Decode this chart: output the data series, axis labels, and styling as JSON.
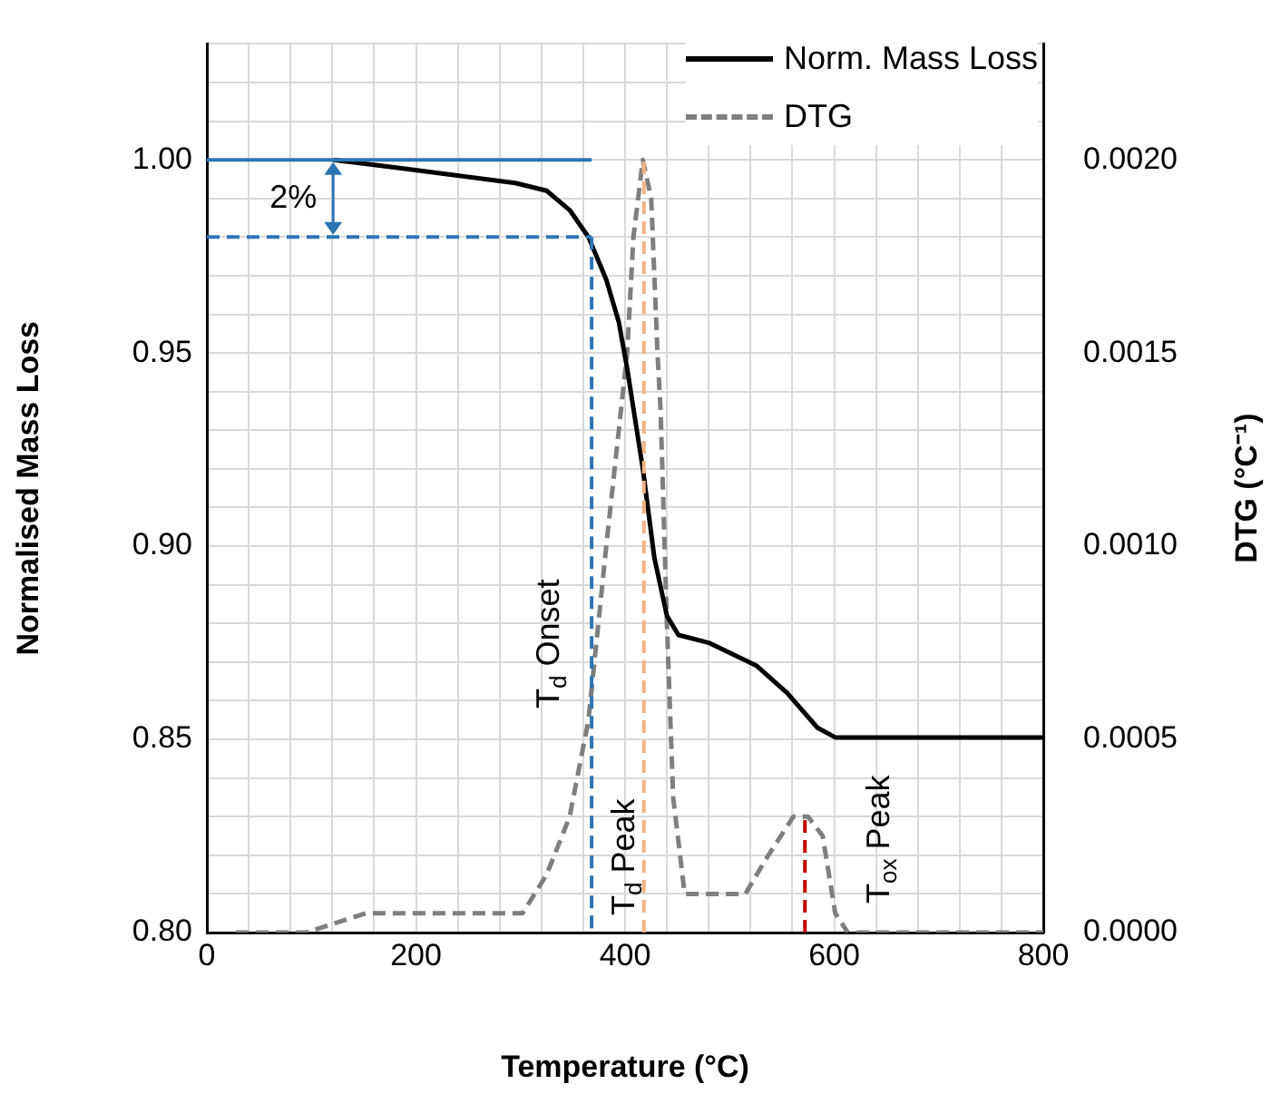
{
  "chart_data": {
    "type": "line",
    "xlabel": "Temperature (°C)",
    "ylabel": "Normalised Mass Loss",
    "y2label": "DTG (°C⁻¹)",
    "xlim": [
      0,
      800
    ],
    "xticks": [
      0,
      {
        "value": 40,
        "label": null
      },
      {
        "value": 80,
        "label": null
      },
      {
        "value": 120,
        "label": null
      },
      {
        "value": 160,
        "label": null
      },
      200,
      {
        "value": 240,
        "label": null
      },
      {
        "value": 280,
        "label": null
      },
      {
        "value": 320,
        "label": null
      },
      {
        "value": 360,
        "label": null
      },
      400,
      {
        "value": 440,
        "label": null
      },
      {
        "value": 480,
        "label": null
      },
      {
        "value": 520,
        "label": null
      },
      {
        "value": 560,
        "label": null
      },
      600,
      {
        "value": 640,
        "label": null
      },
      {
        "value": 680,
        "label": null
      },
      {
        "value": 720,
        "label": null
      },
      {
        "value": 760,
        "label": null
      },
      800
    ],
    "ylim": [
      0.8,
      1.03
    ],
    "yticks": [
      {
        "value": 0.8,
        "label": "0.80"
      },
      {
        "value": 0.81,
        "label": null
      },
      {
        "value": 0.82,
        "label": null
      },
      {
        "value": 0.83,
        "label": null
      },
      {
        "value": 0.84,
        "label": null
      },
      {
        "value": 0.85,
        "label": "0.85"
      },
      {
        "value": 0.86,
        "label": null
      },
      {
        "value": 0.87,
        "label": null
      },
      {
        "value": 0.88,
        "label": null
      },
      {
        "value": 0.89,
        "label": null
      },
      {
        "value": 0.9,
        "label": "0.90"
      },
      {
        "value": 0.91,
        "label": null
      },
      {
        "value": 0.92,
        "label": null
      },
      {
        "value": 0.93,
        "label": null
      },
      {
        "value": 0.94,
        "label": null
      },
      {
        "value": 0.95,
        "label": "0.95"
      },
      {
        "value": 0.96,
        "label": null
      },
      {
        "value": 0.97,
        "label": null
      },
      {
        "value": 0.98,
        "label": null
      },
      {
        "value": 0.99,
        "label": null
      },
      {
        "value": 1,
        "label": "1.00"
      },
      {
        "value": 1.01,
        "label": null
      },
      {
        "value": 1.02,
        "label": null
      },
      {
        "value": 1.03,
        "label": null
      }
    ],
    "y2lim": [
      0,
      0.0023
    ],
    "y2ticks": [
      {
        "value": 0,
        "label": "0.0000"
      },
      {
        "value": 0.0005,
        "label": "0.0005"
      },
      {
        "value": 0.001,
        "label": "0.0010"
      },
      {
        "value": 0.0015,
        "label": "0.0015"
      },
      {
        "value": 0.002,
        "label": "0.0020"
      }
    ],
    "grid": true,
    "legend": "top right",
    "marker": "none",
    "series": [
      {
        "name": "Norm. Mass Loss",
        "color": "#000000",
        "line_style": "solid",
        "x": [
          121,
          181,
          238,
          295,
          325,
          347,
          365,
          382,
          394,
          402,
          417,
          428,
          440,
          451,
          480,
          526,
          555,
          584,
          601,
          800
        ],
        "values": [
          1.0,
          0.998,
          0.996,
          0.994,
          0.992,
          0.987,
          0.98,
          0.969,
          0.958,
          0.946,
          0.92,
          0.897,
          0.882,
          0.877,
          0.875,
          0.869,
          0.862,
          0.853,
          0.8505,
          0.8505
        ]
      },
      {
        "name": "DTG",
        "color": "#7f7f7f",
        "axis": "y2",
        "line_style": "dashed",
        "x": [
          28,
          95,
          152,
          209,
          267,
          302,
          325,
          347,
          365,
          382,
          394,
          402,
          408,
          417,
          425,
          431,
          434,
          440,
          446,
          457,
          480,
          515,
          537,
          561,
          575,
          589,
          601,
          613,
          726,
          800
        ],
        "values": [
          0,
          0,
          5e-05,
          5e-05,
          5e-05,
          5e-05,
          0.00015,
          0.0003,
          0.00055,
          0.001,
          0.0013,
          0.0015,
          0.0018,
          0.002,
          0.0019,
          0.0015,
          0.00135,
          0.0008,
          0.00035,
          0.0001,
          0.0001,
          0.0001,
          0.0002,
          0.0003,
          0.0003,
          0.00025,
          5e-05,
          0,
          0,
          0
        ]
      },
      {
        "color": "#2e75b6",
        "line_style": "solid",
        "x": [
          0,
          368
        ],
        "values": [
          1,
          1
        ]
      },
      {
        "color": "#2e75b6",
        "line_style": "dashed",
        "x": [
          0,
          368
        ],
        "values": [
          0.98,
          0.98
        ]
      },
      {
        "color": "#2e75b6",
        "line_style": "dashed",
        "x": [
          368,
          368
        ],
        "values": [
          0.98,
          0.8
        ]
      },
      {
        "color": "#f4b183",
        "axis": "y2",
        "line_style": "dashed",
        "x": [
          418,
          418
        ],
        "values": [
          0,
          0.002
        ]
      },
      {
        "color": "#c00000",
        "axis": "y2",
        "line_style": "dashed",
        "x": [
          572,
          572
        ],
        "values": [
          0,
          0.0003
        ]
      }
    ],
    "annotations": [
      "2%",
      "T$_{d}$ Onset",
      "T$_{d}$ Peak",
      "T$_{ox}$ Peak"
    ]
  }
}
